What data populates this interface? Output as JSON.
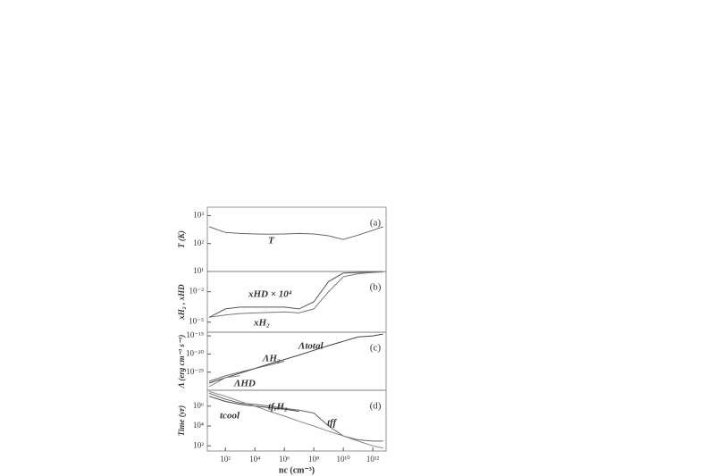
{
  "chart_data": [
    {
      "type": "line",
      "ylabel": "T (K)",
      "panel": "(a)",
      "log": true,
      "xlim": [
        6,
        8000000000000
      ],
      "x": [
        8,
        100,
        1000,
        10000,
        100000,
        1000000,
        10000000,
        100000000,
        1000000000,
        10000000000,
        100000000000,
        1000000000000,
        5000000000000
      ],
      "ylim": [
        10,
        2000
      ],
      "yticks": [
        {
          "value": 10,
          "label": "10¹"
        },
        {
          "value": 100,
          "label": "10²"
        },
        {
          "value": 1000,
          "label": "10³"
        }
      ],
      "series": [
        {
          "name": "T",
          "color": "#666",
          "values": [
            400,
            250,
            230,
            220,
            215,
            220,
            230,
            220,
            190,
            140,
            200,
            300,
            400
          ]
        }
      ]
    },
    {
      "type": "line",
      "ylabel": "xH₂ , xHD",
      "panel": "(b)",
      "log": true,
      "xlim": [
        6,
        8000000000000
      ],
      "x": [
        8,
        100,
        1000,
        10000,
        100000,
        1000000,
        10000000,
        100000000,
        1000000000,
        10000000000,
        100000000000,
        1000000000000,
        5000000000000
      ],
      "ylim": [
        1e-06,
        1
      ],
      "yticks": [
        {
          "value": 1e-05,
          "label": "10⁻⁵"
        },
        {
          "value": 0.01,
          "label": "10⁻²"
        }
      ],
      "series": [
        {
          "name": "xHD × 10⁴",
          "color": "#555",
          "values": [
            3e-05,
            0.0002,
            0.0003,
            0.0003,
            0.0003,
            0.0003,
            0.0002,
            0.001,
            0.1,
            0.7,
            0.8,
            0.9,
            0.9
          ]
        },
        {
          "name": "xH₂",
          "color": "#777",
          "values": [
            3e-05,
            5e-05,
            7e-05,
            8e-05,
            9e-05,
            0.0001,
            8e-05,
            0.0002,
            0.01,
            0.3,
            0.6,
            0.8,
            0.9
          ]
        }
      ]
    },
    {
      "type": "line",
      "ylabel": "Λ (erg cm⁻³ s⁻¹)",
      "panel": "(c)",
      "log": true,
      "xlim": [
        6,
        8000000000000
      ],
      "x": [
        8,
        100,
        1000,
        10000,
        100000,
        1000000,
        10000000,
        100000000,
        1000000000,
        10000000000,
        100000000000,
        1000000000000,
        5000000000000
      ],
      "ylim": [
        1e-30,
        1e-14
      ],
      "yticks": [
        {
          "value": 1e-25,
          "label": "10⁻²⁵"
        },
        {
          "value": 1e-20,
          "label": "10⁻²⁰"
        },
        {
          "value": 1e-15,
          "label": "10⁻¹⁵"
        }
      ],
      "series": [
        {
          "name": "Λtotal",
          "color": "#444",
          "values": [
            1e-28,
            3e-27,
            5e-26,
            1e-24,
            2e-23,
            3e-22,
            5e-21,
            1e-19,
            2e-18,
            3e-17,
            5e-16,
            1e-15,
            3e-15
          ]
        },
        {
          "name": "ΛH₂",
          "color": "#666",
          "values": [
            3e-28,
            1e-26,
            1e-25,
            1e-24,
            1e-23,
            1e-22,
            null,
            null,
            null,
            null,
            null,
            null,
            null
          ]
        },
        {
          "name": "ΛHD",
          "color": "#888",
          "values": [
            1e-29,
            3e-27,
            1e-26,
            null,
            null,
            null,
            null,
            null,
            null,
            null,
            null,
            null,
            null
          ]
        }
      ]
    },
    {
      "type": "line",
      "ylabel": "Time (yr)",
      "panel": "(d)",
      "log": true,
      "xlim": [
        6,
        8000000000000
      ],
      "x": [
        8,
        100,
        1000,
        10000,
        100000,
        1000000,
        10000000,
        100000000,
        1000000000,
        10000000000,
        100000000000,
        1000000000000,
        5000000000000
      ],
      "ylim": [
        30,
        40000000
      ],
      "yticks": [
        {
          "value": 100,
          "label": "10²"
        },
        {
          "value": 10000,
          "label": "10⁴"
        },
        {
          "value": 1000000,
          "label": "10⁶"
        }
      ],
      "xticks": [
        {
          "value": 100,
          "label": "10²"
        },
        {
          "value": 10000,
          "label": "10⁴"
        },
        {
          "value": 1000000,
          "label": "10⁶"
        },
        {
          "value": 100000000,
          "label": "10⁸"
        },
        {
          "value": 10000000000,
          "label": "10¹⁰"
        },
        {
          "value": 1000000000000,
          "label": "10¹²"
        }
      ],
      "xlabel": "nc (cm⁻³)",
      "series": [
        {
          "name": "tcool",
          "color": "#444",
          "values": [
            10000000,
            3000000,
            1500000,
            1000000,
            700000,
            500000,
            300000,
            null,
            null,
            null,
            null,
            null,
            null
          ]
        },
        {
          "name": "tf,H₂",
          "color": "#666",
          "values": [
            20000000,
            5000000,
            2000000,
            1500000,
            1000000,
            600000,
            400000,
            200000,
            10000,
            1000,
            400,
            300,
            300
          ]
        },
        {
          "name": "tff",
          "color": "#888",
          "values": [
            30000000,
            10000000,
            3000000,
            1000000,
            300000,
            100000,
            30000,
            10000,
            3000,
            1000,
            300,
            100,
            60
          ]
        }
      ]
    }
  ]
}
